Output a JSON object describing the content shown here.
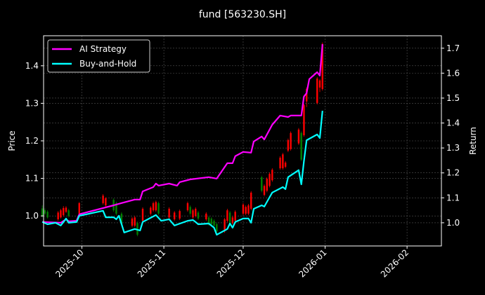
{
  "chart_data": {
    "type": "line",
    "title": "fund [563230.SH]",
    "ylabel_left": "Price",
    "ylabel_right": "Return",
    "xlabel": "",
    "xlim": [
      "2025-09-16",
      "2026-02-14"
    ],
    "ylim_left": [
      0.92,
      1.48
    ],
    "ylim_right": [
      0.907,
      1.75
    ],
    "x_ticks": [
      "2025-10",
      "2025-11",
      "2025-12",
      "2026-01",
      "2026-02"
    ],
    "y_ticks_left": [
      "1.0",
      "1.1",
      "1.2",
      "1.3",
      "1.4"
    ],
    "y_ticks_right": [
      "1.0",
      "1.1",
      "1.2",
      "1.3",
      "1.4",
      "1.5",
      "1.6",
      "1.7"
    ],
    "grid": true,
    "legend_position": "top-left",
    "colors": {
      "ai": "#ff00ff",
      "bh": "#00ffff",
      "up": "#ff0000",
      "down": "#008000",
      "grid": "#555555",
      "background": "#000000"
    },
    "series": [
      {
        "name": "AI Strategy",
        "axis": "right",
        "points": [
          [
            "2025-09-16",
            1.003
          ],
          [
            "2025-09-23",
            1.0
          ],
          [
            "2025-09-25",
            1.014
          ],
          [
            "2025-09-26",
            1.006
          ],
          [
            "2025-09-29",
            1.008
          ],
          [
            "2025-09-30",
            1.034
          ],
          [
            "2025-10-09",
            1.059
          ],
          [
            "2025-10-13",
            1.07
          ],
          [
            "2025-10-16",
            1.079
          ],
          [
            "2025-10-21",
            1.093
          ],
          [
            "2025-10-23",
            1.093
          ],
          [
            "2025-10-24",
            1.126
          ],
          [
            "2025-10-28",
            1.143
          ],
          [
            "2025-10-29",
            1.157
          ],
          [
            "2025-10-30",
            1.149
          ],
          [
            "2025-11-03",
            1.157
          ],
          [
            "2025-11-06",
            1.149
          ],
          [
            "2025-11-07",
            1.163
          ],
          [
            "2025-11-11",
            1.174
          ],
          [
            "2025-11-18",
            1.183
          ],
          [
            "2025-11-21",
            1.177
          ],
          [
            "2025-11-25",
            1.239
          ],
          [
            "2025-11-27",
            1.239
          ],
          [
            "2025-11-28",
            1.267
          ],
          [
            "2025-12-01",
            1.284
          ],
          [
            "2025-12-04",
            1.281
          ],
          [
            "2025-12-05",
            1.326
          ],
          [
            "2025-12-08",
            1.346
          ],
          [
            "2025-12-09",
            1.334
          ],
          [
            "2025-12-12",
            1.393
          ],
          [
            "2025-12-15",
            1.43
          ],
          [
            "2025-12-18",
            1.424
          ],
          [
            "2025-12-19",
            1.43
          ],
          [
            "2025-12-23",
            1.43
          ],
          [
            "2025-12-24",
            1.506
          ],
          [
            "2025-12-25",
            1.52
          ],
          [
            "2025-12-26",
            1.576
          ],
          [
            "2025-12-29",
            1.604
          ],
          [
            "2025-12-30",
            1.59
          ],
          [
            "2025-12-31",
            1.716
          ]
        ]
      },
      {
        "name": "Buy-and-Hold",
        "axis": "right",
        "points": [
          [
            "2025-09-16",
            1.003
          ],
          [
            "2025-09-18",
            0.994
          ],
          [
            "2025-09-21",
            1.0
          ],
          [
            "2025-09-23",
            0.989
          ],
          [
            "2025-09-25",
            1.017
          ],
          [
            "2025-09-26",
            1.0
          ],
          [
            "2025-09-29",
            1.003
          ],
          [
            "2025-09-30",
            1.028
          ],
          [
            "2025-10-09",
            1.048
          ],
          [
            "2025-10-10",
            1.022
          ],
          [
            "2025-10-13",
            1.022
          ],
          [
            "2025-10-14",
            1.014
          ],
          [
            "2025-10-15",
            1.028
          ],
          [
            "2025-10-17",
            0.961
          ],
          [
            "2025-10-21",
            0.975
          ],
          [
            "2025-10-23",
            0.969
          ],
          [
            "2025-10-24",
            1.003
          ],
          [
            "2025-10-29",
            1.031
          ],
          [
            "2025-10-31",
            1.008
          ],
          [
            "2025-11-03",
            1.014
          ],
          [
            "2025-11-05",
            0.989
          ],
          [
            "2025-11-10",
            1.008
          ],
          [
            "2025-11-12",
            1.011
          ],
          [
            "2025-11-13",
            1.003
          ],
          [
            "2025-11-14",
            0.994
          ],
          [
            "2025-11-18",
            0.997
          ],
          [
            "2025-11-20",
            0.98
          ],
          [
            "2025-11-21",
            0.952
          ],
          [
            "2025-11-25",
            0.975
          ],
          [
            "2025-11-26",
            0.997
          ],
          [
            "2025-11-27",
            0.98
          ],
          [
            "2025-11-28",
            1.003
          ],
          [
            "2025-12-01",
            1.017
          ],
          [
            "2025-12-03",
            1.017
          ],
          [
            "2025-12-04",
            1.0
          ],
          [
            "2025-12-05",
            1.056
          ],
          [
            "2025-12-08",
            1.07
          ],
          [
            "2025-12-09",
            1.065
          ],
          [
            "2025-12-12",
            1.121
          ],
          [
            "2025-12-16",
            1.143
          ],
          [
            "2025-12-17",
            1.135
          ],
          [
            "2025-12-18",
            1.183
          ],
          [
            "2025-12-22",
            1.211
          ],
          [
            "2025-12-23",
            1.154
          ],
          [
            "2025-12-24",
            1.247
          ],
          [
            "2025-12-25",
            1.331
          ],
          [
            "2025-12-29",
            1.354
          ],
          [
            "2025-12-30",
            1.34
          ],
          [
            "2025-12-31",
            1.449
          ]
        ]
      }
    ],
    "candles_axis": "left",
    "candles_columns": [
      "date",
      "open",
      "high",
      "low",
      "close"
    ],
    "candles": [
      [
        "2025-09-16",
        1.02,
        1.028,
        0.996,
        1.0
      ],
      [
        "2025-09-17",
        1.015,
        1.02,
        1.002,
        1.006
      ],
      [
        "2025-09-18",
        1.011,
        1.015,
        0.993,
        0.996
      ],
      [
        "2025-09-22",
        0.991,
        1.013,
        0.987,
        1.009
      ],
      [
        "2025-09-23",
        0.996,
        1.019,
        0.993,
        1.015
      ],
      [
        "2025-09-24",
        1.002,
        1.026,
        0.998,
        1.021
      ],
      [
        "2025-09-25",
        1.011,
        1.026,
        1.008,
        1.022
      ],
      [
        "2025-09-26",
        1.015,
        1.019,
        0.996,
        1.0
      ],
      [
        "2025-09-30",
        1.006,
        1.037,
        1.002,
        1.034
      ],
      [
        "2025-10-09",
        1.034,
        1.058,
        1.03,
        1.054
      ],
      [
        "2025-10-10",
        1.028,
        1.05,
        1.024,
        1.047
      ],
      [
        "2025-10-13",
        1.043,
        1.047,
        1.011,
        1.015
      ],
      [
        "2025-10-14",
        1.034,
        1.038,
        1.002,
        1.006
      ],
      [
        "2025-10-16",
        1.006,
        1.01,
        0.974,
        0.978
      ],
      [
        "2025-10-20",
        0.974,
        0.997,
        0.97,
        0.993
      ],
      [
        "2025-10-21",
        0.974,
        1.0,
        0.97,
        0.996
      ],
      [
        "2025-10-22",
        0.981,
        0.985,
        0.946,
        0.95
      ],
      [
        "2025-10-24",
        0.987,
        1.023,
        0.983,
        1.019
      ],
      [
        "2025-10-27",
        1.006,
        1.026,
        1.002,
        1.022
      ],
      [
        "2025-10-28",
        1.015,
        1.038,
        1.011,
        1.034
      ],
      [
        "2025-10-29",
        1.015,
        1.041,
        1.011,
        1.037
      ],
      [
        "2025-10-30",
        1.034,
        1.038,
        1.002,
        1.006
      ],
      [
        "2025-11-03",
        0.996,
        1.023,
        0.992,
        1.019
      ],
      [
        "2025-11-05",
        0.991,
        1.013,
        0.987,
        1.009
      ],
      [
        "2025-11-07",
        0.993,
        1.017,
        0.989,
        1.013
      ],
      [
        "2025-11-10",
        1.015,
        1.038,
        1.011,
        1.034
      ],
      [
        "2025-11-11",
        1.024,
        1.028,
        1.002,
        1.006
      ],
      [
        "2025-11-12",
        0.996,
        1.019,
        0.992,
        1.015
      ],
      [
        "2025-11-13",
        1.0,
        1.023,
        0.996,
        1.019
      ],
      [
        "2025-11-14",
        1.009,
        1.013,
        0.989,
        0.993
      ],
      [
        "2025-11-17",
        0.991,
        1.01,
        0.987,
        1.006
      ],
      [
        "2025-11-18",
        0.996,
        1.0,
        0.974,
        0.978
      ],
      [
        "2025-11-19",
        0.993,
        0.997,
        0.974,
        0.978
      ],
      [
        "2025-11-20",
        0.987,
        0.991,
        0.97,
        0.974
      ],
      [
        "2025-11-21",
        0.978,
        0.982,
        0.955,
        0.959
      ],
      [
        "2025-11-24",
        0.959,
        0.995,
        0.955,
        0.991
      ],
      [
        "2025-11-25",
        0.987,
        1.019,
        0.983,
        1.015
      ],
      [
        "2025-11-26",
        1.009,
        1.013,
        0.977,
        0.981
      ],
      [
        "2025-11-27",
        0.981,
        1.0,
        0.977,
        0.996
      ],
      [
        "2025-11-28",
        0.987,
        1.015,
        0.983,
        1.011
      ],
      [
        "2025-12-01",
        1.006,
        1.034,
        1.002,
        1.03
      ],
      [
        "2025-12-02",
        1.006,
        1.028,
        1.002,
        1.024
      ],
      [
        "2025-12-03",
        1.006,
        1.032,
        1.002,
        1.028
      ],
      [
        "2025-12-04",
        1.019,
        1.066,
        1.015,
        1.062
      ],
      [
        "2025-12-08",
        1.103,
        1.107,
        1.063,
        1.067
      ],
      [
        "2025-12-09",
        1.056,
        1.084,
        1.052,
        1.08
      ],
      [
        "2025-12-10",
        1.067,
        1.103,
        1.063,
        1.099
      ],
      [
        "2025-12-11",
        1.08,
        1.116,
        1.076,
        1.112
      ],
      [
        "2025-12-12",
        1.095,
        1.127,
        1.091,
        1.123
      ],
      [
        "2025-12-15",
        1.127,
        1.159,
        1.123,
        1.155
      ],
      [
        "2025-12-16",
        1.127,
        1.168,
        1.123,
        1.164
      ],
      [
        "2025-12-17",
        1.131,
        1.146,
        1.127,
        1.142
      ],
      [
        "2025-12-18",
        1.174,
        1.206,
        1.17,
        1.202
      ],
      [
        "2025-12-19",
        1.178,
        1.225,
        1.174,
        1.221
      ],
      [
        "2025-12-22",
        1.193,
        1.234,
        1.189,
        1.23
      ],
      [
        "2025-12-23",
        1.221,
        1.225,
        1.146,
        1.15
      ],
      [
        "2025-12-24",
        1.215,
        1.299,
        1.211,
        1.295
      ],
      [
        "2025-12-25",
        1.305,
        1.342,
        1.29,
        1.338
      ],
      [
        "2025-12-29",
        1.301,
        1.37,
        1.297,
        1.366
      ],
      [
        "2025-12-30",
        1.342,
        1.365,
        1.33,
        1.361
      ],
      [
        "2025-12-31",
        1.338,
        1.462,
        1.334,
        1.458
      ]
    ]
  }
}
